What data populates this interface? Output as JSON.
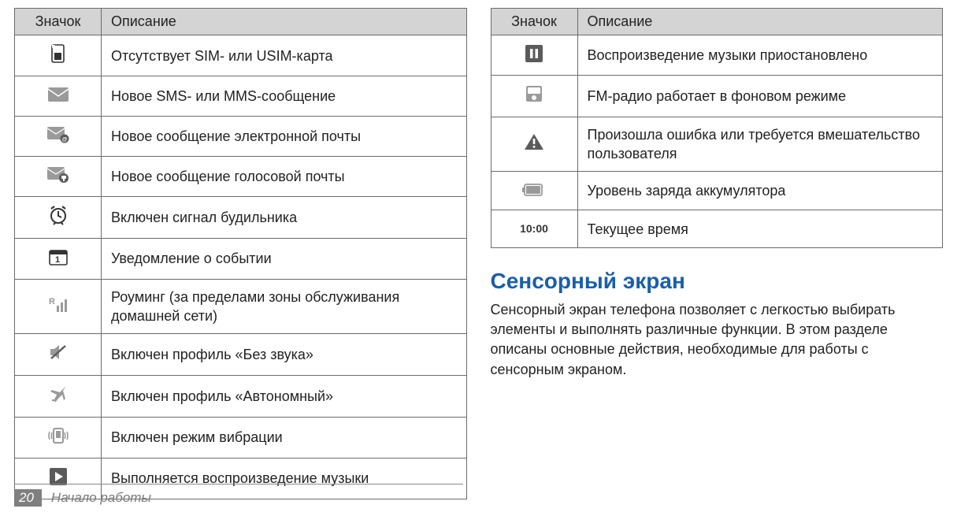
{
  "headers": {
    "icon": "Значок",
    "desc": "Описание"
  },
  "left_rows": [
    {
      "icon": "sim",
      "desc": "Отсутствует SIM- или USIM-карта"
    },
    {
      "icon": "sms",
      "desc": "Новое SMS- или MMS-сообщение"
    },
    {
      "icon": "email",
      "desc": "Новое сообщение электронной почты"
    },
    {
      "icon": "voicemail",
      "desc": "Новое сообщение голосовой почты"
    },
    {
      "icon": "alarm",
      "desc": "Включен сигнал будильника"
    },
    {
      "icon": "event",
      "desc": "Уведомление о событии"
    },
    {
      "icon": "roaming",
      "desc": "Роуминг (за пределами зоны обслуживания домашней сети)"
    },
    {
      "icon": "mute",
      "desc": "Включен профиль «Без звука»"
    },
    {
      "icon": "airplane",
      "desc": "Включен профиль «Автономный»"
    },
    {
      "icon": "vibrate",
      "desc": "Включен режим вибрации"
    },
    {
      "icon": "play",
      "desc": "Выполняется воспроизведение музыки"
    }
  ],
  "right_rows": [
    {
      "icon": "pause",
      "desc": "Воспроизведение музыки приостановлено"
    },
    {
      "icon": "fm",
      "desc": "FM-радио работает в фоновом режиме"
    },
    {
      "icon": "warning",
      "desc": "Произошла ошибка или требуется вмешательство пользователя"
    },
    {
      "icon": "battery",
      "desc": "Уровень заряда аккумулятора"
    },
    {
      "icon": "time",
      "desc": "Текущее время",
      "icon_text": "10:00"
    }
  ],
  "section": {
    "heading": "Сенсорный экран",
    "body": "Сенсорный экран телефона позволяет с легкостью выбирать элементы и выполнять различные функции. В этом разделе описаны основные действия, необходимые для работы с сенсорным экраном.",
    "heading_color": "#1a5fa8"
  },
  "footer": {
    "page": "20",
    "label": "Начало работы"
  },
  "colors": {
    "header_bg": "#d4d4d4",
    "border": "#6b6b6b",
    "icon_gray": "#9a9a9a",
    "icon_dark": "#5b5b5b",
    "footer_box_bg": "#7f7f7f"
  }
}
